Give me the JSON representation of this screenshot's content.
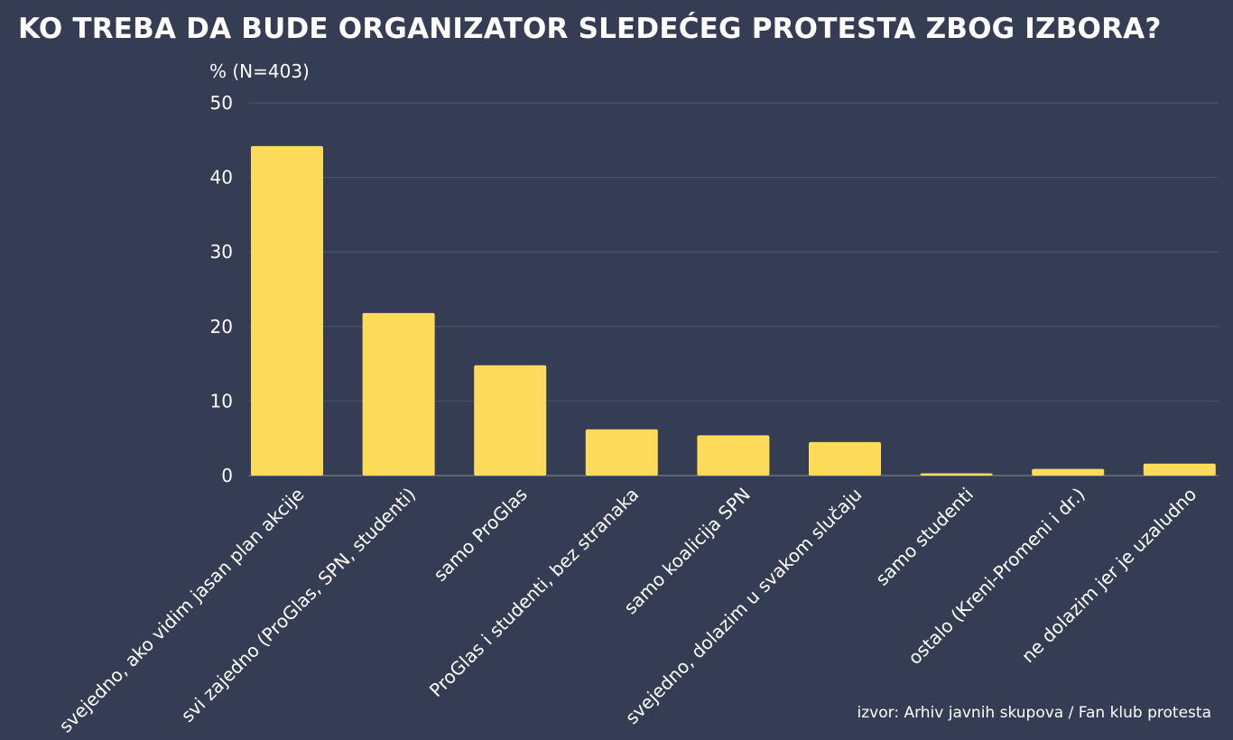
{
  "title": "KO TREBA DA BUDE ORGANIZATOR SLEDEĆEG PROTESTA ZBOG IZBORA?",
  "unit_label": "%  (N=403)",
  "source": "izvor: Arhiv javnih skupova / Fan klub protesta",
  "colors": {
    "background": "#343d54",
    "bar": "#ffdb5c",
    "grid": "#4e566b",
    "text": "#ffffff"
  },
  "chart_data": {
    "type": "bar",
    "title": "KO TREBA DA BUDE ORGANIZATOR SLEDEĆEG PROTESTA ZBOG IZBORA?",
    "ylabel": "%  (N=403)",
    "xlabel": "",
    "ylim": [
      0,
      50
    ],
    "yticks": [
      0,
      10,
      20,
      30,
      40,
      50
    ],
    "grid": true,
    "categories": [
      "svejedno, ako vidim jasan plan akcije",
      "svi zajedno (ProGlas, SPN, studenti)",
      "samo ProGlas",
      "ProGlas i studenti, bez stranaka",
      "samo koalicija SPN",
      "svejedno, dolazim u svakom slučaju",
      "samo studenti",
      "ostalo (Kreni-Promeni i dr.)",
      "ne dolazim jer je uzaludno"
    ],
    "values": [
      44.2,
      21.8,
      14.8,
      6.2,
      5.4,
      4.5,
      0.3,
      0.9,
      1.6
    ]
  }
}
